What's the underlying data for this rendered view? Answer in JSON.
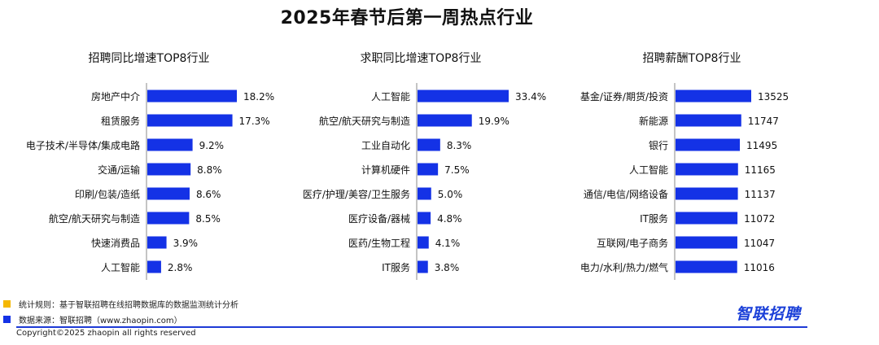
{
  "page_title": "2025年春节后第一周热点行业",
  "colors": {
    "bar": "#1432e6",
    "axis": "#888888",
    "note_yellow": "#f5b800",
    "note_blue": "#1432e6",
    "brand": "#1a3fd8"
  },
  "chart_data": [
    {
      "type": "bar",
      "orientation": "horizontal",
      "title": "招聘同比增速TOP8行业",
      "categories": [
        "房地产中介",
        "租赁服务",
        "电子技术/半导体/集成电路",
        "交通/运输",
        "印刷/包装/造纸",
        "航空/航天研究与制造",
        "快速消费品",
        "人工智能"
      ],
      "values": [
        18.2,
        17.3,
        9.2,
        8.8,
        8.6,
        8.5,
        3.9,
        2.8
      ],
      "value_labels": [
        "18.2%",
        "17.3%",
        "9.2%",
        "8.8%",
        "8.6%",
        "8.5%",
        "3.9%",
        "2.8%"
      ],
      "xlim": [
        0,
        18.2
      ],
      "grid": false,
      "legend": "none"
    },
    {
      "type": "bar",
      "orientation": "horizontal",
      "title": "求职同比增速TOP8行业",
      "categories": [
        "人工智能",
        "航空/航天研究与制造",
        "工业自动化",
        "计算机硬件",
        "医疗/护理/美容/卫生服务",
        "医疗设备/器械",
        "医药/生物工程",
        "IT服务"
      ],
      "values": [
        33.4,
        19.9,
        8.3,
        7.5,
        5.0,
        4.8,
        4.1,
        3.8
      ],
      "value_labels": [
        "33.4%",
        "19.9%",
        "8.3%",
        "7.5%",
        "5.0%",
        "4.8%",
        "4.1%",
        "3.8%"
      ],
      "xlim": [
        0,
        33.4
      ],
      "grid": false,
      "legend": "none"
    },
    {
      "type": "bar",
      "orientation": "horizontal",
      "title": "招聘薪酬TOP8行业",
      "categories": [
        "基金/证券/期货/投资",
        "新能源",
        "银行",
        "人工智能",
        "通信/电信/网络设备",
        "IT服务",
        "互联网/电子商务",
        "电力/水利/热力/燃气"
      ],
      "values": [
        13525,
        11747,
        11495,
        11165,
        11137,
        11072,
        11047,
        11016
      ],
      "value_labels": [
        "13525",
        "11747",
        "11495",
        "11165",
        "11137",
        "11072",
        "11047",
        "11016"
      ],
      "xlim": [
        0,
        13525
      ],
      "grid": false,
      "legend": "none"
    }
  ],
  "footer": {
    "note1": "统计规则：基于智联招聘在线招聘数据库的数据监测统计分析",
    "note2": "数据来源：智联招聘（www.zhaopin.com）",
    "copyright": "Copyright©2025 zhaopin all rights reserved",
    "logo_text": "智联招聘"
  }
}
